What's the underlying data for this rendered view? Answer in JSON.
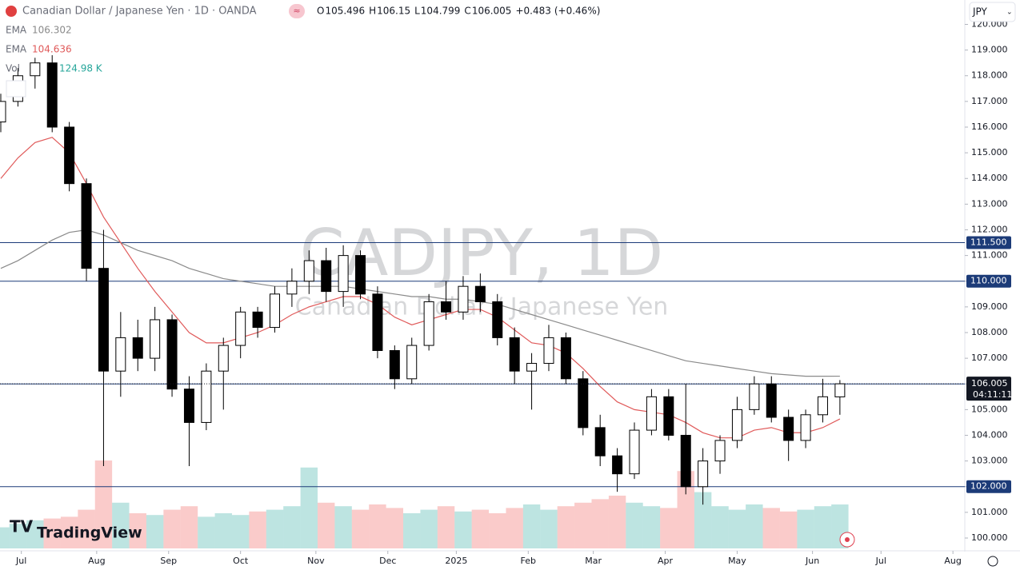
{
  "chart_data": {
    "type": "candlestick",
    "title": "Canadian Dollar / Japanese Yen · 1D · OANDA",
    "ohlc_labels": [
      "O",
      "H",
      "L",
      "C"
    ],
    "change": "+0.483",
    "change_pct": "(+0.46%)",
    "currency": "JPY",
    "watermark": "CADJPY, 1D",
    "watermark_sub": "Canadian Dollar / Japanese Yen",
    "brand": "TradingView",
    "countdown": "04:11:11",
    "x": [
      0,
      5,
      10,
      15,
      20,
      25,
      30,
      35,
      40,
      45,
      50,
      55,
      60,
      65,
      70,
      75,
      80,
      85,
      90,
      95,
      100,
      105,
      110,
      115,
      120,
      125,
      130,
      135,
      140,
      145,
      150,
      155,
      160,
      165,
      170,
      175,
      180,
      185,
      190,
      195,
      200,
      205,
      210,
      215,
      220,
      225,
      230,
      235,
      240,
      245
    ],
    "open": [
      116.2,
      117.0,
      118.0,
      118.5,
      116.0,
      113.8,
      110.5,
      106.5,
      107.8,
      107.0,
      108.5,
      105.8,
      104.5,
      106.5,
      107.5,
      108.8,
      108.2,
      109.5,
      110.0,
      110.8,
      109.6,
      111.0,
      109.5,
      107.3,
      106.2,
      107.5,
      109.2,
      108.8,
      109.8,
      109.2,
      107.8,
      106.5,
      106.8,
      107.8,
      106.2,
      104.3,
      103.2,
      102.5,
      104.2,
      105.5,
      104.0,
      102.0,
      103.0,
      103.8,
      105.0,
      106.0,
      104.7,
      103.8,
      104.8,
      105.496
    ],
    "high": [
      117.3,
      118.3,
      118.7,
      118.8,
      116.2,
      114.0,
      112.0,
      108.8,
      108.5,
      109.0,
      108.7,
      106.3,
      106.8,
      107.8,
      109.0,
      109.0,
      109.8,
      110.5,
      111.2,
      111.3,
      111.4,
      111.2,
      109.8,
      107.5,
      107.8,
      109.5,
      110.0,
      110.2,
      110.3,
      109.5,
      108.2,
      107.2,
      108.3,
      108.0,
      106.5,
      104.8,
      103.5,
      104.5,
      105.8,
      105.8,
      106.0,
      103.5,
      104.0,
      105.5,
      106.3,
      106.3,
      105.0,
      105.0,
      106.2,
      106.15
    ],
    "low": [
      115.8,
      116.8,
      117.5,
      115.8,
      113.5,
      110.0,
      102.8,
      105.5,
      106.5,
      106.5,
      105.5,
      102.8,
      104.2,
      105.0,
      107.0,
      107.8,
      108.0,
      109.0,
      109.5,
      109.2,
      109.0,
      109.3,
      107.0,
      105.8,
      106.0,
      107.3,
      108.5,
      108.5,
      108.8,
      107.5,
      106.0,
      105.0,
      106.5,
      106.0,
      104.0,
      102.8,
      101.8,
      102.3,
      104.0,
      103.8,
      101.7,
      101.3,
      102.5,
      103.5,
      104.8,
      104.5,
      103.0,
      103.5,
      104.5,
      104.799
    ],
    "close": [
      117.0,
      118.0,
      118.5,
      116.0,
      113.8,
      110.5,
      106.5,
      107.8,
      107.0,
      108.5,
      105.8,
      104.5,
      106.5,
      107.5,
      108.8,
      108.2,
      109.5,
      110.0,
      110.8,
      109.6,
      111.0,
      109.5,
      107.3,
      106.2,
      107.5,
      109.2,
      108.8,
      109.8,
      109.2,
      107.8,
      106.5,
      106.8,
      107.8,
      106.2,
      104.3,
      103.2,
      102.5,
      104.2,
      105.5,
      104.0,
      102.0,
      103.0,
      103.8,
      105.0,
      106.0,
      104.7,
      103.8,
      104.8,
      105.5,
      106.005
    ],
    "series": [
      {
        "name": "EMA",
        "color": "#8a8a8a",
        "values": [
          110.5,
          110.8,
          111.2,
          111.6,
          111.9,
          112.0,
          111.8,
          111.5,
          111.2,
          111.0,
          110.8,
          110.5,
          110.3,
          110.1,
          110.0,
          109.9,
          109.8,
          109.8,
          109.8,
          109.8,
          109.8,
          109.7,
          109.6,
          109.5,
          109.4,
          109.4,
          109.3,
          109.3,
          109.2,
          109.1,
          108.9,
          108.7,
          108.5,
          108.3,
          108.1,
          107.9,
          107.7,
          107.5,
          107.3,
          107.1,
          106.9,
          106.8,
          106.7,
          106.6,
          106.5,
          106.4,
          106.35,
          106.3,
          106.3,
          106.302
        ]
      },
      {
        "name": "EMA",
        "color": "#e05a5a",
        "values": [
          114.0,
          114.8,
          115.4,
          115.6,
          115.0,
          113.8,
          112.5,
          111.5,
          110.5,
          109.6,
          108.8,
          108.0,
          107.6,
          107.6,
          107.8,
          108.0,
          108.3,
          108.7,
          109.0,
          109.2,
          109.4,
          109.4,
          109.1,
          108.6,
          108.3,
          108.5,
          108.7,
          108.9,
          108.9,
          108.6,
          108.1,
          107.6,
          107.5,
          107.2,
          106.6,
          105.9,
          105.3,
          105.0,
          104.9,
          104.8,
          104.5,
          104.1,
          103.9,
          103.9,
          104.2,
          104.3,
          104.1,
          104.1,
          104.3,
          104.636
        ]
      }
    ],
    "volume_name": "Vol",
    "volume_color": "#26a69a",
    "volume": [
      60,
      70,
      80,
      85,
      90,
      110,
      250,
      130,
      100,
      95,
      110,
      120,
      90,
      100,
      95,
      105,
      110,
      120,
      230,
      130,
      120,
      110,
      125,
      115,
      100,
      110,
      120,
      105,
      110,
      100,
      115,
      125,
      110,
      120,
      130,
      140,
      150,
      130,
      120,
      115,
      220,
      160,
      120,
      110,
      125,
      115,
      105,
      110,
      120,
      124.98
    ],
    "volume_value_label": "124.98 K",
    "levels": [
      {
        "value": 111.5,
        "label": "111.500"
      },
      {
        "value": 110,
        "label": "110.000"
      },
      {
        "value": 106,
        "label": "106.000"
      },
      {
        "value": 102,
        "label": "102.000"
      }
    ],
    "xlim": [
      0,
      281
    ],
    "xticks": [
      {
        "value": 6,
        "label": "Jul"
      },
      {
        "value": 28,
        "label": "Aug"
      },
      {
        "value": 49,
        "label": "Sep"
      },
      {
        "value": 70,
        "label": "Oct"
      },
      {
        "value": 92,
        "label": "Nov"
      },
      {
        "value": 113,
        "label": "Dec"
      },
      {
        "value": 133,
        "label": "2025"
      },
      {
        "value": 154,
        "label": "Feb"
      },
      {
        "value": 173,
        "label": "Mar"
      },
      {
        "value": 194,
        "label": "Apr"
      },
      {
        "value": 215,
        "label": "May"
      },
      {
        "value": 237,
        "label": "Jun"
      },
      {
        "value": 257,
        "label": "Jul"
      },
      {
        "value": 278,
        "label": "Aug"
      }
    ],
    "ylim": [
      99.6,
      120.3
    ],
    "yticks": [
      {
        "value": 100,
        "label": "100.000"
      },
      {
        "value": 101,
        "label": "101.000"
      },
      {
        "value": 102,
        "label": "102.000"
      },
      {
        "value": 103,
        "label": "103.000"
      },
      {
        "value": 104,
        "label": "104.000"
      },
      {
        "value": 105,
        "label": "105.000"
      },
      {
        "value": 106,
        "label": "106.000"
      },
      {
        "value": 107,
        "label": "107.000"
      },
      {
        "value": 108,
        "label": "108.000"
      },
      {
        "value": 109,
        "label": "109.000"
      },
      {
        "value": 110,
        "label": "110.000"
      },
      {
        "value": 111,
        "label": "111.000"
      },
      {
        "value": 112,
        "label": "112.000"
      },
      {
        "value": 113,
        "label": "113.000"
      },
      {
        "value": 114,
        "label": "114.000"
      },
      {
        "value": 115,
        "label": "115.000"
      },
      {
        "value": 116,
        "label": "116.000"
      },
      {
        "value": 117,
        "label": "117.000"
      },
      {
        "value": 118,
        "label": "118.000"
      },
      {
        "value": 119,
        "label": "119.000"
      },
      {
        "value": 120,
        "label": "120.000"
      }
    ],
    "up_color": "#ffffff",
    "down_color": "#000000",
    "level_color": "#1c3b78"
  }
}
